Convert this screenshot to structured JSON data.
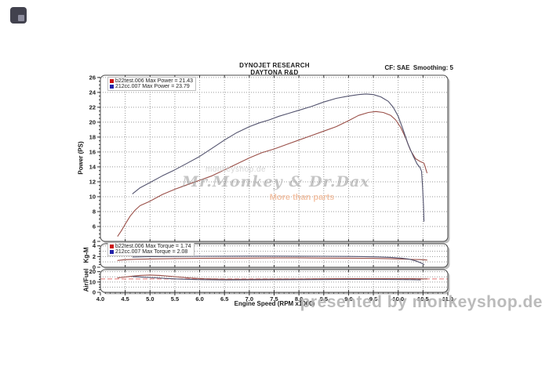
{
  "header": {
    "title_line1": "DYNOJET RESEARCH",
    "title_line2": "DAYTONA R&D",
    "correction": "CF: SAE  Smoothing: 5"
  },
  "watermarks": {
    "center_small": "monkeyshop.de",
    "center_main": "Mr.Monkey & Dr.Dax",
    "center_sub": "More than parts",
    "bottom": "presented by monkeyshop.de"
  },
  "colors": {
    "run1": "#9a4f48",
    "run2": "#53536e",
    "legend_run1": "#cc1111",
    "legend_run2": "#2222aa",
    "grid": "#9a9a9a",
    "panel_border": "#4a4a4a",
    "panel_shadow": "#bfbfbf",
    "af_target": "#e89090",
    "tick": "#333333"
  },
  "chart_data": [
    {
      "type": "line",
      "panel": "power",
      "ylabel": "Power (PS)",
      "xlim": [
        4,
        11
      ],
      "ylim": [
        4,
        26.3
      ],
      "yticks": [
        4,
        6,
        8,
        10,
        12,
        14,
        16,
        18,
        20,
        22,
        24,
        26
      ],
      "grid_y": [
        6,
        8,
        10,
        12,
        14,
        16,
        18,
        20,
        22,
        24,
        26
      ],
      "legend": [
        {
          "label": "b22test.006 Max Power = 21.43",
          "color_key": "legend_run1"
        },
        {
          "label": "212cc.007 Max Power = 23.79",
          "color_key": "legend_run2"
        }
      ],
      "series": [
        {
          "name": "b22test.006",
          "color_key": "run1",
          "points": [
            [
              4.35,
              4.7
            ],
            [
              4.42,
              5.4
            ],
            [
              4.5,
              6.3
            ],
            [
              4.6,
              7.4
            ],
            [
              4.7,
              8.2
            ],
            [
              4.8,
              8.8
            ],
            [
              5.0,
              9.4
            ],
            [
              5.25,
              10.3
            ],
            [
              5.5,
              11.0
            ],
            [
              5.75,
              11.6
            ],
            [
              6.0,
              12.2
            ],
            [
              6.25,
              12.8
            ],
            [
              6.5,
              13.6
            ],
            [
              6.75,
              14.4
            ],
            [
              7.0,
              15.2
            ],
            [
              7.25,
              15.9
            ],
            [
              7.5,
              16.4
            ],
            [
              7.75,
              17.0
            ],
            [
              8.0,
              17.6
            ],
            [
              8.25,
              18.2
            ],
            [
              8.5,
              18.8
            ],
            [
              8.75,
              19.4
            ],
            [
              9.0,
              20.2
            ],
            [
              9.2,
              20.9
            ],
            [
              9.4,
              21.3
            ],
            [
              9.55,
              21.43
            ],
            [
              9.7,
              21.3
            ],
            [
              9.85,
              20.9
            ],
            [
              9.95,
              20.3
            ],
            [
              10.05,
              19.3
            ],
            [
              10.15,
              17.9
            ],
            [
              10.25,
              16.2
            ],
            [
              10.35,
              15.1
            ],
            [
              10.45,
              14.7
            ],
            [
              10.52,
              14.5
            ],
            [
              10.58,
              13.2
            ]
          ]
        },
        {
          "name": "212cc.007",
          "color_key": "run2",
          "points": [
            [
              4.65,
              10.4
            ],
            [
              4.8,
              11.2
            ],
            [
              5.0,
              11.9
            ],
            [
              5.25,
              12.8
            ],
            [
              5.5,
              13.6
            ],
            [
              5.75,
              14.5
            ],
            [
              6.0,
              15.4
            ],
            [
              6.25,
              16.5
            ],
            [
              6.5,
              17.6
            ],
            [
              6.75,
              18.6
            ],
            [
              7.0,
              19.4
            ],
            [
              7.2,
              19.9
            ],
            [
              7.4,
              20.3
            ],
            [
              7.6,
              20.8
            ],
            [
              7.8,
              21.2
            ],
            [
              8.0,
              21.6
            ],
            [
              8.25,
              22.1
            ],
            [
              8.5,
              22.7
            ],
            [
              8.75,
              23.2
            ],
            [
              9.0,
              23.5
            ],
            [
              9.2,
              23.7
            ],
            [
              9.35,
              23.79
            ],
            [
              9.5,
              23.7
            ],
            [
              9.65,
              23.4
            ],
            [
              9.8,
              22.8
            ],
            [
              9.9,
              22.0
            ],
            [
              10.0,
              20.8
            ],
            [
              10.1,
              19.0
            ],
            [
              10.2,
              17.0
            ],
            [
              10.3,
              15.5
            ],
            [
              10.38,
              14.4
            ],
            [
              10.44,
              13.9
            ],
            [
              10.47,
              13.4
            ],
            [
              10.49,
              11.5
            ],
            [
              10.51,
              8.8
            ],
            [
              10.52,
              6.7
            ]
          ]
        }
      ]
    },
    {
      "type": "line",
      "panel": "torque",
      "ylabel": "Kg-M",
      "xlim": [
        4,
        11
      ],
      "ylim": [
        0,
        4.4
      ],
      "yticks": [
        0,
        2,
        4
      ],
      "grid_y": [
        1,
        2,
        3,
        4
      ],
      "legend": [
        {
          "label": "b22test.006 Max Torque = 1.74",
          "color_key": "legend_run1"
        },
        {
          "label": "212cc.007 Max Torque = 2.08",
          "color_key": "legend_run2"
        }
      ],
      "series": [
        {
          "name": "b22test.006",
          "color_key": "run1",
          "points": [
            [
              4.35,
              1.28
            ],
            [
              4.5,
              1.42
            ],
            [
              4.7,
              1.5
            ],
            [
              5.0,
              1.56
            ],
            [
              5.5,
              1.63
            ],
            [
              6.0,
              1.67
            ],
            [
              6.5,
              1.7
            ],
            [
              7.0,
              1.72
            ],
            [
              7.5,
              1.74
            ],
            [
              8.0,
              1.74
            ],
            [
              8.5,
              1.72
            ],
            [
              9.0,
              1.7
            ],
            [
              9.5,
              1.66
            ],
            [
              9.8,
              1.6
            ],
            [
              10.1,
              1.52
            ],
            [
              10.3,
              1.47
            ],
            [
              10.45,
              1.44
            ],
            [
              10.58,
              1.35
            ]
          ]
        },
        {
          "name": "212cc.007",
          "color_key": "run2",
          "points": [
            [
              4.65,
              1.92
            ],
            [
              5.0,
              1.98
            ],
            [
              5.5,
              2.02
            ],
            [
              6.0,
              2.05
            ],
            [
              6.5,
              2.07
            ],
            [
              7.0,
              2.08
            ],
            [
              7.5,
              2.08
            ],
            [
              8.0,
              2.07
            ],
            [
              8.5,
              2.05
            ],
            [
              9.0,
              2.02
            ],
            [
              9.3,
              1.99
            ],
            [
              9.6,
              1.93
            ],
            [
              9.85,
              1.85
            ],
            [
              10.05,
              1.72
            ],
            [
              10.2,
              1.55
            ],
            [
              10.35,
              1.2
            ],
            [
              10.45,
              0.85
            ],
            [
              10.52,
              0.5
            ]
          ]
        }
      ]
    },
    {
      "type": "line",
      "panel": "af",
      "ylabel": "Air/Fuel",
      "xlabel": "Engine Speed (RPM x1000)",
      "xlim": [
        4,
        11
      ],
      "ylim": [
        0,
        22
      ],
      "yticks": [
        0,
        10,
        20
      ],
      "grid_y": [
        5,
        10,
        15,
        20
      ],
      "xticks": [
        4,
        4.5,
        5,
        5.5,
        6,
        6.5,
        7,
        7.5,
        8,
        8.5,
        9,
        9.5,
        10,
        10.5,
        11
      ],
      "xtick_labels": [
        "4.0",
        "4.5",
        "5.0",
        "5.5",
        "6.0",
        "6.5",
        "7.0",
        "7.5",
        "8.0",
        "8.5",
        "9.0",
        "9.5",
        "10.0",
        "10.5",
        "11.0"
      ],
      "target_line": 13.0,
      "series": [
        {
          "name": "b22test.006",
          "color_key": "run1",
          "points": [
            [
              4.35,
              14.0
            ],
            [
              4.6,
              15.4
            ],
            [
              4.8,
              16.4
            ],
            [
              5.0,
              16.8
            ],
            [
              5.2,
              16.4
            ],
            [
              5.5,
              15.2
            ],
            [
              5.8,
              13.9
            ],
            [
              6.1,
              13.1
            ],
            [
              6.5,
              12.7
            ],
            [
              7.0,
              12.7
            ],
            [
              7.5,
              12.8
            ],
            [
              8.0,
              12.9
            ],
            [
              8.5,
              13.1
            ],
            [
              9.0,
              13.2
            ],
            [
              9.5,
              13.3
            ],
            [
              10.0,
              13.3
            ],
            [
              10.3,
              13.2
            ],
            [
              10.58,
              13.0
            ]
          ]
        },
        {
          "name": "212cc.007",
          "color_key": "run2",
          "points": [
            [
              4.65,
              15.3
            ],
            [
              4.85,
              14.7
            ],
            [
              5.1,
              14.0
            ],
            [
              5.4,
              13.2
            ],
            [
              5.7,
              12.7
            ],
            [
              6.0,
              12.3
            ],
            [
              6.5,
              12.0
            ],
            [
              7.0,
              12.1
            ],
            [
              7.5,
              12.2
            ],
            [
              8.0,
              12.3
            ],
            [
              8.5,
              12.4
            ],
            [
              9.0,
              12.5
            ],
            [
              9.5,
              12.5
            ],
            [
              10.0,
              12.4
            ],
            [
              10.25,
              12.3
            ],
            [
              10.45,
              12.1
            ]
          ]
        }
      ]
    }
  ]
}
